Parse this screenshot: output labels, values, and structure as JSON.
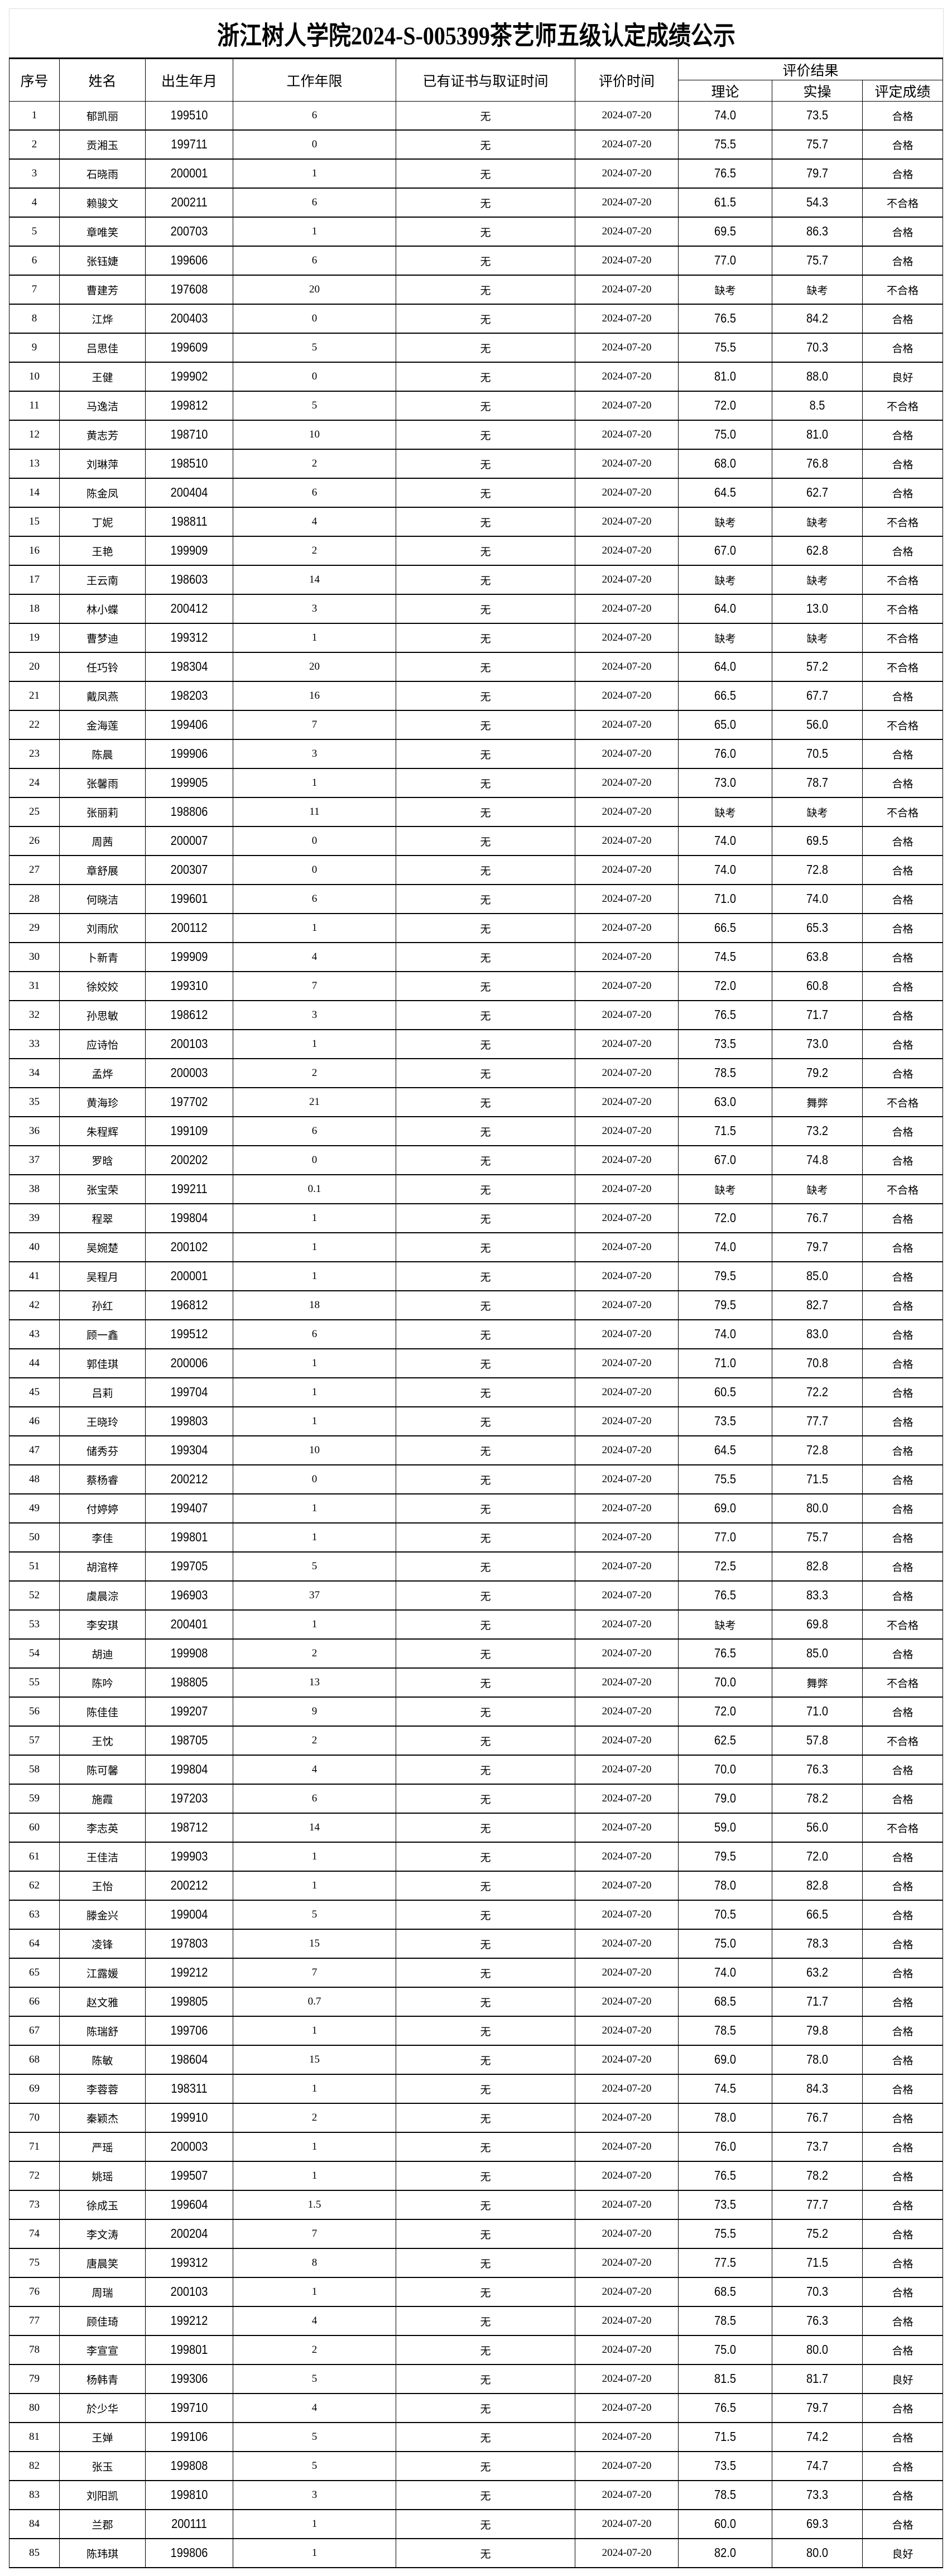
{
  "title": "浙江树人学院2024-S-005399茶艺师五级认定成绩公示",
  "headers": {
    "seq": "序号",
    "name": "姓名",
    "birth": "出生年月",
    "work_years": "工作年限",
    "cert": "已有证书与取证时间",
    "eval_date": "评价时间",
    "result_group": "评价结果",
    "theory": "理论",
    "practice": "实操",
    "grade": "评定成绩"
  },
  "rows": [
    [
      "1",
      "郁凯丽",
      "199510",
      "6",
      "无",
      "2024-07-20",
      "74.0",
      "73.5",
      "合格"
    ],
    [
      "2",
      "贡湘玉",
      "199711",
      "0",
      "无",
      "2024-07-20",
      "75.5",
      "75.7",
      "合格"
    ],
    [
      "3",
      "石晓雨",
      "200001",
      "1",
      "无",
      "2024-07-20",
      "76.5",
      "79.7",
      "合格"
    ],
    [
      "4",
      "赖骏文",
      "200211",
      "6",
      "无",
      "2024-07-20",
      "61.5",
      "54.3",
      "不合格"
    ],
    [
      "5",
      "章唯笑",
      "200703",
      "1",
      "无",
      "2024-07-20",
      "69.5",
      "86.3",
      "合格"
    ],
    [
      "6",
      "张钰婕",
      "199606",
      "6",
      "无",
      "2024-07-20",
      "77.0",
      "75.7",
      "合格"
    ],
    [
      "7",
      "曹建芳",
      "197608",
      "20",
      "无",
      "2024-07-20",
      "缺考",
      "缺考",
      "不合格"
    ],
    [
      "8",
      "江烨",
      "200403",
      "0",
      "无",
      "2024-07-20",
      "76.5",
      "84.2",
      "合格"
    ],
    [
      "9",
      "吕思佳",
      "199609",
      "5",
      "无",
      "2024-07-20",
      "75.5",
      "70.3",
      "合格"
    ],
    [
      "10",
      "王健",
      "199902",
      "0",
      "无",
      "2024-07-20",
      "81.0",
      "88.0",
      "良好"
    ],
    [
      "11",
      "马逸洁",
      "199812",
      "5",
      "无",
      "2024-07-20",
      "72.0",
      "8.5",
      "不合格"
    ],
    [
      "12",
      "黄志芳",
      "198710",
      "10",
      "无",
      "2024-07-20",
      "75.0",
      "81.0",
      "合格"
    ],
    [
      "13",
      "刘琳萍",
      "198510",
      "2",
      "无",
      "2024-07-20",
      "68.0",
      "76.8",
      "合格"
    ],
    [
      "14",
      "陈金凤",
      "200404",
      "6",
      "无",
      "2024-07-20",
      "64.5",
      "62.7",
      "合格"
    ],
    [
      "15",
      "丁妮",
      "198811",
      "4",
      "无",
      "2024-07-20",
      "缺考",
      "缺考",
      "不合格"
    ],
    [
      "16",
      "王艳",
      "199909",
      "2",
      "无",
      "2024-07-20",
      "67.0",
      "62.8",
      "合格"
    ],
    [
      "17",
      "王云南",
      "198603",
      "14",
      "无",
      "2024-07-20",
      "缺考",
      "缺考",
      "不合格"
    ],
    [
      "18",
      "林小蝶",
      "200412",
      "3",
      "无",
      "2024-07-20",
      "64.0",
      "13.0",
      "不合格"
    ],
    [
      "19",
      "曹梦迪",
      "199312",
      "1",
      "无",
      "2024-07-20",
      "缺考",
      "缺考",
      "不合格"
    ],
    [
      "20",
      "任巧铃",
      "198304",
      "20",
      "无",
      "2024-07-20",
      "64.0",
      "57.2",
      "不合格"
    ],
    [
      "21",
      "戴凤燕",
      "198203",
      "16",
      "无",
      "2024-07-20",
      "66.5",
      "67.7",
      "合格"
    ],
    [
      "22",
      "金海莲",
      "199406",
      "7",
      "无",
      "2024-07-20",
      "65.0",
      "56.0",
      "不合格"
    ],
    [
      "23",
      "陈晨",
      "199906",
      "3",
      "无",
      "2024-07-20",
      "76.0",
      "70.5",
      "合格"
    ],
    [
      "24",
      "张馨雨",
      "199905",
      "1",
      "无",
      "2024-07-20",
      "73.0",
      "78.7",
      "合格"
    ],
    [
      "25",
      "张丽莉",
      "198806",
      "11",
      "无",
      "2024-07-20",
      "缺考",
      "缺考",
      "不合格"
    ],
    [
      "26",
      "周茜",
      "200007",
      "0",
      "无",
      "2024-07-20",
      "74.0",
      "69.5",
      "合格"
    ],
    [
      "27",
      "章舒展",
      "200307",
      "0",
      "无",
      "2024-07-20",
      "74.0",
      "72.8",
      "合格"
    ],
    [
      "28",
      "何晓洁",
      "199601",
      "6",
      "无",
      "2024-07-20",
      "71.0",
      "74.0",
      "合格"
    ],
    [
      "29",
      "刘雨欣",
      "200112",
      "1",
      "无",
      "2024-07-20",
      "66.5",
      "65.3",
      "合格"
    ],
    [
      "30",
      "卜新青",
      "199909",
      "4",
      "无",
      "2024-07-20",
      "74.5",
      "63.8",
      "合格"
    ],
    [
      "31",
      "徐姣姣",
      "199310",
      "7",
      "无",
      "2024-07-20",
      "72.0",
      "60.8",
      "合格"
    ],
    [
      "32",
      "孙思敏",
      "198612",
      "3",
      "无",
      "2024-07-20",
      "76.5",
      "71.7",
      "合格"
    ],
    [
      "33",
      "应诗怡",
      "200103",
      "1",
      "无",
      "2024-07-20",
      "73.5",
      "73.0",
      "合格"
    ],
    [
      "34",
      "孟烨",
      "200003",
      "2",
      "无",
      "2024-07-20",
      "78.5",
      "79.2",
      "合格"
    ],
    [
      "35",
      "黄海珍",
      "197702",
      "21",
      "无",
      "2024-07-20",
      "63.0",
      "舞弊",
      "不合格"
    ],
    [
      "36",
      "朱程辉",
      "199109",
      "6",
      "无",
      "2024-07-20",
      "71.5",
      "73.2",
      "合格"
    ],
    [
      "37",
      "罗晗",
      "200202",
      "0",
      "无",
      "2024-07-20",
      "67.0",
      "74.8",
      "合格"
    ],
    [
      "38",
      "张宝荣",
      "199211",
      "0.1",
      "无",
      "2024-07-20",
      "缺考",
      "缺考",
      "不合格"
    ],
    [
      "39",
      "程翠",
      "199804",
      "1",
      "无",
      "2024-07-20",
      "72.0",
      "76.7",
      "合格"
    ],
    [
      "40",
      "吴婉楚",
      "200102",
      "1",
      "无",
      "2024-07-20",
      "74.0",
      "79.7",
      "合格"
    ],
    [
      "41",
      "吴程月",
      "200001",
      "1",
      "无",
      "2024-07-20",
      "79.5",
      "85.0",
      "合格"
    ],
    [
      "42",
      "孙红",
      "196812",
      "18",
      "无",
      "2024-07-20",
      "79.5",
      "82.7",
      "合格"
    ],
    [
      "43",
      "顾一鑫",
      "199512",
      "6",
      "无",
      "2024-07-20",
      "74.0",
      "83.0",
      "合格"
    ],
    [
      "44",
      "郭佳琪",
      "200006",
      "1",
      "无",
      "2024-07-20",
      "71.0",
      "70.8",
      "合格"
    ],
    [
      "45",
      "吕莉",
      "199704",
      "1",
      "无",
      "2024-07-20",
      "60.5",
      "72.2",
      "合格"
    ],
    [
      "46",
      "王晓玲",
      "199803",
      "1",
      "无",
      "2024-07-20",
      "73.5",
      "77.7",
      "合格"
    ],
    [
      "47",
      "储秀芬",
      "199304",
      "10",
      "无",
      "2024-07-20",
      "64.5",
      "72.8",
      "合格"
    ],
    [
      "48",
      "蔡杨睿",
      "200212",
      "0",
      "无",
      "2024-07-20",
      "75.5",
      "71.5",
      "合格"
    ],
    [
      "49",
      "付婷婷",
      "199407",
      "1",
      "无",
      "2024-07-20",
      "69.0",
      "80.0",
      "合格"
    ],
    [
      "50",
      "李佳",
      "199801",
      "1",
      "无",
      "2024-07-20",
      "77.0",
      "75.7",
      "合格"
    ],
    [
      "51",
      "胡涫梓",
      "199705",
      "5",
      "无",
      "2024-07-20",
      "72.5",
      "82.8",
      "合格"
    ],
    [
      "52",
      "虞晨淙",
      "196903",
      "37",
      "无",
      "2024-07-20",
      "76.5",
      "83.3",
      "合格"
    ],
    [
      "53",
      "李安琪",
      "200401",
      "1",
      "无",
      "2024-07-20",
      "缺考",
      "69.8",
      "不合格"
    ],
    [
      "54",
      "胡迪",
      "199908",
      "2",
      "无",
      "2024-07-20",
      "76.5",
      "85.0",
      "合格"
    ],
    [
      "55",
      "陈吟",
      "198805",
      "13",
      "无",
      "2024-07-20",
      "70.0",
      "舞弊",
      "不合格"
    ],
    [
      "56",
      "陈佳佳",
      "199207",
      "9",
      "无",
      "2024-07-20",
      "72.0",
      "71.0",
      "合格"
    ],
    [
      "57",
      "王忱",
      "198705",
      "2",
      "无",
      "2024-07-20",
      "62.5",
      "57.8",
      "不合格"
    ],
    [
      "58",
      "陈可馨",
      "199804",
      "4",
      "无",
      "2024-07-20",
      "70.0",
      "76.3",
      "合格"
    ],
    [
      "59",
      "施霞",
      "197203",
      "6",
      "无",
      "2024-07-20",
      "79.0",
      "78.2",
      "合格"
    ],
    [
      "60",
      "李志英",
      "198712",
      "14",
      "无",
      "2024-07-20",
      "59.0",
      "56.0",
      "不合格"
    ],
    [
      "61",
      "王佳洁",
      "199903",
      "1",
      "无",
      "2024-07-20",
      "79.5",
      "72.0",
      "合格"
    ],
    [
      "62",
      "王怡",
      "200212",
      "1",
      "无",
      "2024-07-20",
      "78.0",
      "82.8",
      "合格"
    ],
    [
      "63",
      "滕金兴",
      "199004",
      "5",
      "无",
      "2024-07-20",
      "70.5",
      "66.5",
      "合格"
    ],
    [
      "64",
      "凌锋",
      "197803",
      "15",
      "无",
      "2024-07-20",
      "75.0",
      "78.3",
      "合格"
    ],
    [
      "65",
      "江露媛",
      "199212",
      "7",
      "无",
      "2024-07-20",
      "74.0",
      "63.2",
      "合格"
    ],
    [
      "66",
      "赵文雅",
      "199805",
      "0.7",
      "无",
      "2024-07-20",
      "68.5",
      "71.7",
      "合格"
    ],
    [
      "67",
      "陈瑞舒",
      "199706",
      "1",
      "无",
      "2024-07-20",
      "78.5",
      "79.8",
      "合格"
    ],
    [
      "68",
      "陈敏",
      "198604",
      "15",
      "无",
      "2024-07-20",
      "69.0",
      "78.0",
      "合格"
    ],
    [
      "69",
      "李蓉蓉",
      "198311",
      "1",
      "无",
      "2024-07-20",
      "74.5",
      "84.3",
      "合格"
    ],
    [
      "70",
      "秦颖杰",
      "199910",
      "2",
      "无",
      "2024-07-20",
      "78.0",
      "76.7",
      "合格"
    ],
    [
      "71",
      "严瑶",
      "200003",
      "1",
      "无",
      "2024-07-20",
      "76.0",
      "73.7",
      "合格"
    ],
    [
      "72",
      "姚瑶",
      "199507",
      "1",
      "无",
      "2024-07-20",
      "76.5",
      "78.2",
      "合格"
    ],
    [
      "73",
      "徐成玉",
      "199604",
      "1.5",
      "无",
      "2024-07-20",
      "73.5",
      "77.7",
      "合格"
    ],
    [
      "74",
      "李文涛",
      "200204",
      "7",
      "无",
      "2024-07-20",
      "75.5",
      "75.2",
      "合格"
    ],
    [
      "75",
      "唐晨笑",
      "199312",
      "8",
      "无",
      "2024-07-20",
      "77.5",
      "71.5",
      "合格"
    ],
    [
      "76",
      "周瑞",
      "200103",
      "1",
      "无",
      "2024-07-20",
      "68.5",
      "70.3",
      "合格"
    ],
    [
      "77",
      "顾佳琦",
      "199212",
      "4",
      "无",
      "2024-07-20",
      "78.5",
      "76.3",
      "合格"
    ],
    [
      "78",
      "李宣宣",
      "199801",
      "2",
      "无",
      "2024-07-20",
      "75.0",
      "80.0",
      "合格"
    ],
    [
      "79",
      "杨韩青",
      "199306",
      "5",
      "无",
      "2024-07-20",
      "81.5",
      "81.7",
      "良好"
    ],
    [
      "80",
      "於少华",
      "199710",
      "4",
      "无",
      "2024-07-20",
      "76.5",
      "79.7",
      "合格"
    ],
    [
      "81",
      "王婵",
      "199106",
      "5",
      "无",
      "2024-07-20",
      "71.5",
      "74.2",
      "合格"
    ],
    [
      "82",
      "张玉",
      "199808",
      "5",
      "无",
      "2024-07-20",
      "73.5",
      "74.7",
      "合格"
    ],
    [
      "83",
      "刘阳凯",
      "199810",
      "3",
      "无",
      "2024-07-20",
      "78.5",
      "73.3",
      "合格"
    ],
    [
      "84",
      "兰郡",
      "200111",
      "1",
      "无",
      "2024-07-20",
      "60.0",
      "69.3",
      "合格"
    ],
    [
      "85",
      "陈玮琪",
      "199806",
      "1",
      "无",
      "2024-07-20",
      "82.0",
      "80.0",
      "良好"
    ]
  ]
}
